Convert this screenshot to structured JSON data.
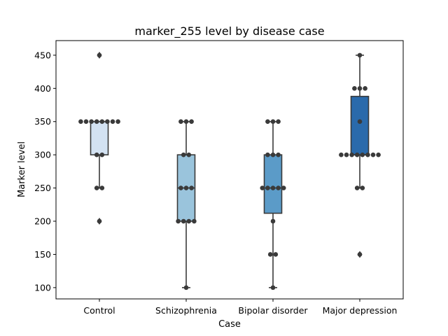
{
  "chart_data": {
    "type": "box",
    "title": "marker_255 level by disease case",
    "xlabel": "Case",
    "ylabel": "Marker level",
    "ylim": [
      83,
      472
    ],
    "yticks": [
      100,
      150,
      200,
      250,
      300,
      350,
      400,
      450
    ],
    "grid": false,
    "categories": [
      "Control",
      "Schizophrenia",
      "Bipolar disorder",
      "Major depression"
    ],
    "colors": [
      "#d3e2f2",
      "#9ac4dc",
      "#5b9bc8",
      "#2a6aab"
    ],
    "boxes": [
      {
        "q1": 300,
        "median": 350,
        "q3": 350,
        "whisker_low": 250,
        "whisker_high": 350,
        "outliers": [
          450,
          200
        ]
      },
      {
        "q1": 200,
        "median": 250,
        "q3": 300,
        "whisker_low": 100,
        "whisker_high": 350,
        "outliers": []
      },
      {
        "q1": 212,
        "median": 250,
        "q3": 300,
        "whisker_low": 100,
        "whisker_high": 350,
        "outliers": []
      },
      {
        "q1": 300,
        "median": 300,
        "q3": 388,
        "whisker_low": 250,
        "whisker_high": 450,
        "outliers": [
          150
        ]
      }
    ],
    "points": [
      [
        450,
        350,
        350,
        350,
        350,
        350,
        350,
        350,
        350,
        300,
        300,
        250,
        250,
        200
      ],
      [
        350,
        350,
        350,
        300,
        300,
        250,
        250,
        250,
        200,
        200,
        200,
        200,
        100
      ],
      [
        350,
        350,
        350,
        300,
        300,
        300,
        250,
        250,
        250,
        250,
        250,
        200,
        150,
        150,
        100
      ],
      [
        450,
        400,
        400,
        400,
        350,
        300,
        300,
        300,
        300,
        300,
        300,
        300,
        300,
        250,
        250,
        150
      ]
    ]
  }
}
